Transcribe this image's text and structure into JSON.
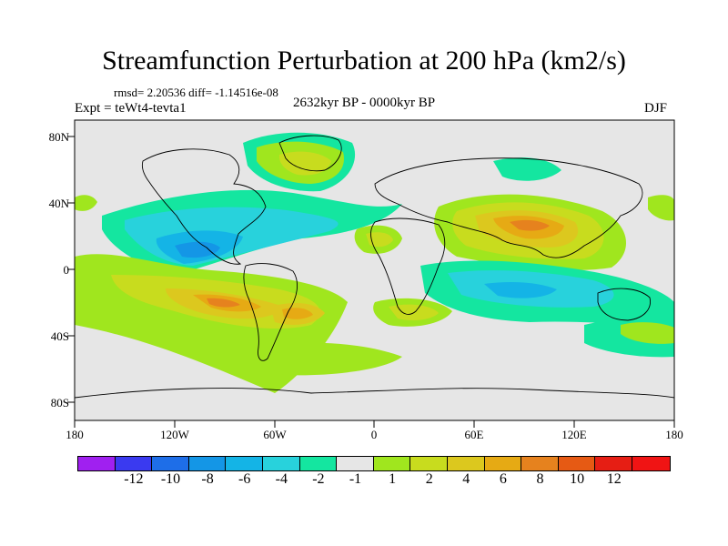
{
  "title": "Streamfunction Perturbation at 200 hPa (km2/s)",
  "stats": "rmsd= 2.20536 diff= -1.14516e-08",
  "experiment": "Expt = teWt4-tevta1",
  "period": "2632kyr BP - 0000kyr BP",
  "season": "DJF",
  "lat_labels": [
    "80N",
    "40N",
    "0",
    "40S",
    "80S"
  ],
  "lon_labels": [
    "180",
    "120W",
    "60W",
    "0",
    "60E",
    "120E",
    "180"
  ],
  "colorbar": {
    "colors": [
      "#a020f0",
      "#3a3af0",
      "#1e6ee8",
      "#1496e6",
      "#14b4e6",
      "#28d2dc",
      "#14e6a0",
      "#e6e6e6",
      "#a0e61e",
      "#c8dc1e",
      "#dcc81e",
      "#e6aa14",
      "#e6821e",
      "#e65a14",
      "#e61e14",
      "#f01414"
    ],
    "labels": [
      "-12",
      "-10",
      "-8",
      "-6",
      "-4",
      "-2",
      "-1",
      "1",
      "2",
      "4",
      "6",
      "8",
      "10",
      "12"
    ]
  },
  "map_data": {
    "background": "#e6e6e6",
    "anomalies": [
      {
        "name": "north-pacific-low",
        "lon": -115,
        "lat": 8,
        "value": -6
      },
      {
        "name": "south-pacific-high",
        "lon": -95,
        "lat": -22,
        "value": 8
      },
      {
        "name": "south-america-high",
        "lon": -47,
        "lat": -28,
        "value": 7
      },
      {
        "name": "greenland-high",
        "lon": -40,
        "lat": 70,
        "value": 2
      },
      {
        "name": "asia-high",
        "lon": 90,
        "lat": 26,
        "value": 8
      },
      {
        "name": "indian-ocean-low",
        "lon": 75,
        "lat": -15,
        "value": -4
      },
      {
        "name": "africa-high",
        "lon": 5,
        "lat": 10,
        "value": 2
      },
      {
        "name": "south-atlantic-high",
        "lon": 15,
        "lat": -28,
        "value": 3
      },
      {
        "name": "australia-low",
        "lon": 140,
        "lat": -20,
        "value": -3
      }
    ]
  }
}
